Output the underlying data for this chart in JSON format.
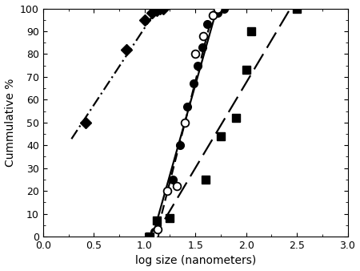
{
  "xlabel": "log size (nanometers)",
  "ylabel": "Cummulative %",
  "xlim": [
    0,
    3
  ],
  "ylim": [
    0,
    100
  ],
  "xticks": [
    0,
    0.5,
    1.0,
    1.5,
    2.0,
    2.5,
    3.0
  ],
  "diamonds_x": [
    0.42,
    0.82,
    1.0,
    1.07,
    1.12,
    1.15,
    1.18
  ],
  "diamonds_y": [
    50,
    82,
    95,
    98,
    99,
    100,
    100
  ],
  "solid_circles_x": [
    1.08,
    1.1,
    1.28,
    1.35,
    1.42,
    1.48,
    1.52,
    1.57,
    1.62,
    1.72,
    1.78
  ],
  "solid_circles_y": [
    0,
    2,
    25,
    40,
    57,
    67,
    75,
    83,
    93,
    98,
    100
  ],
  "open_circles_x": [
    1.1,
    1.13,
    1.22,
    1.32,
    1.4,
    1.5,
    1.58,
    1.67,
    1.72
  ],
  "open_circles_y": [
    1,
    3,
    20,
    22,
    50,
    80,
    88,
    97,
    100
  ],
  "solid_squares_x": [
    1.05,
    1.12,
    1.25,
    1.6,
    1.75,
    1.9,
    2.0,
    2.05,
    2.5
  ],
  "solid_squares_y": [
    0,
    7,
    8,
    25,
    44,
    52,
    73,
    90,
    100
  ],
  "fit_sc_xrange": [
    1.06,
    1.8
  ],
  "fit_oc_xrange": [
    1.08,
    1.74
  ],
  "fit_ss_xrange": [
    1.05,
    2.52
  ],
  "fit_d_xrange": [
    0.28,
    1.22
  ]
}
